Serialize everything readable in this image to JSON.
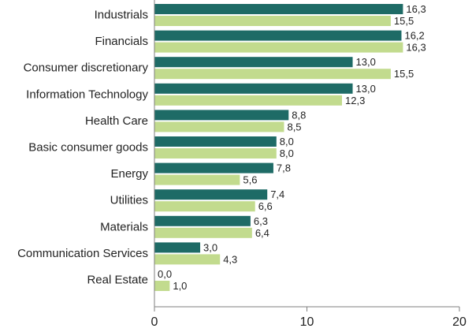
{
  "chart_data": {
    "type": "bar",
    "orientation": "horizontal",
    "categories": [
      "Industrials",
      "Financials",
      "Consumer discretionary",
      "Information Technology",
      "Health Care",
      "Basic consumer goods",
      "Energy",
      "Utilities",
      "Materials",
      "Communication Services",
      "Real Estate"
    ],
    "series": [
      {
        "color": "#1e6b66",
        "values": [
          16.3,
          16.2,
          13.0,
          13.0,
          8.8,
          8.0,
          7.8,
          7.4,
          6.3,
          3.0,
          0.0
        ],
        "labels": [
          "16,3",
          "16,2",
          "13,0",
          "13,0",
          "8,8",
          "8,0",
          "7,8",
          "7,4",
          "6,3",
          "3,0",
          "0,0"
        ]
      },
      {
        "color": "#c2db8e",
        "values": [
          15.5,
          16.3,
          15.5,
          12.3,
          8.5,
          8.0,
          5.6,
          6.6,
          6.4,
          4.3,
          1.0
        ],
        "labels": [
          "15,5",
          "16,3",
          "15,5",
          "12,3",
          "8,5",
          "8,0",
          "5,6",
          "6,6",
          "6,4",
          "4,3",
          "1,0"
        ]
      }
    ],
    "xlim": [
      0,
      20
    ],
    "xticks": [
      0,
      10,
      20
    ],
    "xtick_labels": [
      "0",
      "10",
      "20"
    ],
    "title": "",
    "xlabel": "",
    "ylabel": "",
    "grid": false,
    "legend": "none"
  }
}
